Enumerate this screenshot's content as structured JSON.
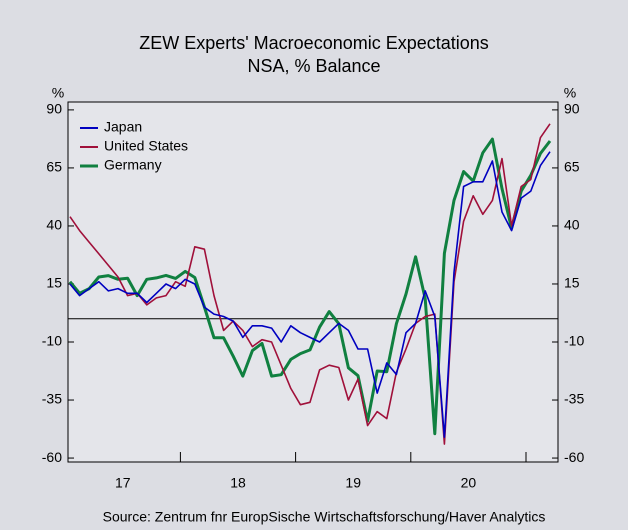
{
  "chart_data": {
    "type": "line",
    "title": "ZEW Experts' Macroeconomic Expectations",
    "subtitle": "NSA, % Balance",
    "y_unit_left": "%",
    "y_unit_right": "%",
    "source": "Source:   Zentrum fnr EuropSische Wirtschaftsforschung/Haver Analytics",
    "x_labels": [
      "17",
      "18",
      "19",
      "20"
    ],
    "ylim": [
      -61.7,
      93.4
    ],
    "yticks": [
      -60,
      -35,
      -10,
      15,
      40,
      65,
      90
    ],
    "hline": 0,
    "legend": "top-left",
    "series": [
      {
        "name": "Japan",
        "color": "#0000c0",
        "values": [
          15,
          10,
          13,
          16,
          12,
          13,
          11,
          11,
          7,
          11,
          15,
          13,
          17,
          15,
          5,
          2,
          1,
          -1,
          -8,
          -3,
          -3,
          -4,
          -10,
          -3,
          -6,
          -8,
          -10,
          -6,
          -2,
          -5,
          -13,
          -13,
          -32,
          -19,
          -24,
          -6,
          -2,
          12,
          1,
          -51,
          20,
          57,
          59,
          59,
          68,
          46,
          38,
          52,
          55,
          66,
          72
        ]
      },
      {
        "name": "United States",
        "color": "#a0103a",
        "values": [
          44,
          38,
          33,
          28,
          23,
          18,
          10,
          11,
          6,
          9,
          10,
          16,
          14,
          31,
          30,
          10,
          -5,
          -1,
          -5,
          -12,
          -9,
          -10,
          -20,
          -30,
          -37,
          -36,
          -22,
          -20,
          -21,
          -35,
          -26,
          -46,
          -40,
          -43,
          -23,
          -13,
          -2,
          1,
          2,
          -54,
          16,
          42,
          53,
          45,
          51,
          69,
          40,
          57,
          60,
          78,
          84
        ]
      },
      {
        "name": "Germany",
        "color": "#108040",
        "values": [
          16,
          11,
          13,
          18,
          18.6,
          17,
          17.5,
          10,
          17,
          17.6,
          18.7,
          17.4,
          20.4,
          17.8,
          5.1,
          -8.2,
          -8.2,
          -16.1,
          -24.7,
          -13.7,
          -10.6,
          -24.7,
          -24.1,
          -17.5,
          -15,
          -13.4,
          -3.6,
          3.1,
          -2.1,
          -21.1,
          -24.5,
          -44.1,
          -22.5,
          -22.8,
          -2.1,
          10.7,
          26.7,
          8.7,
          -49.5,
          28.2,
          51,
          63.4,
          59.3,
          71.5,
          77.4,
          56.1,
          39,
          55,
          61.8,
          71.2,
          76.6
        ]
      }
    ]
  }
}
